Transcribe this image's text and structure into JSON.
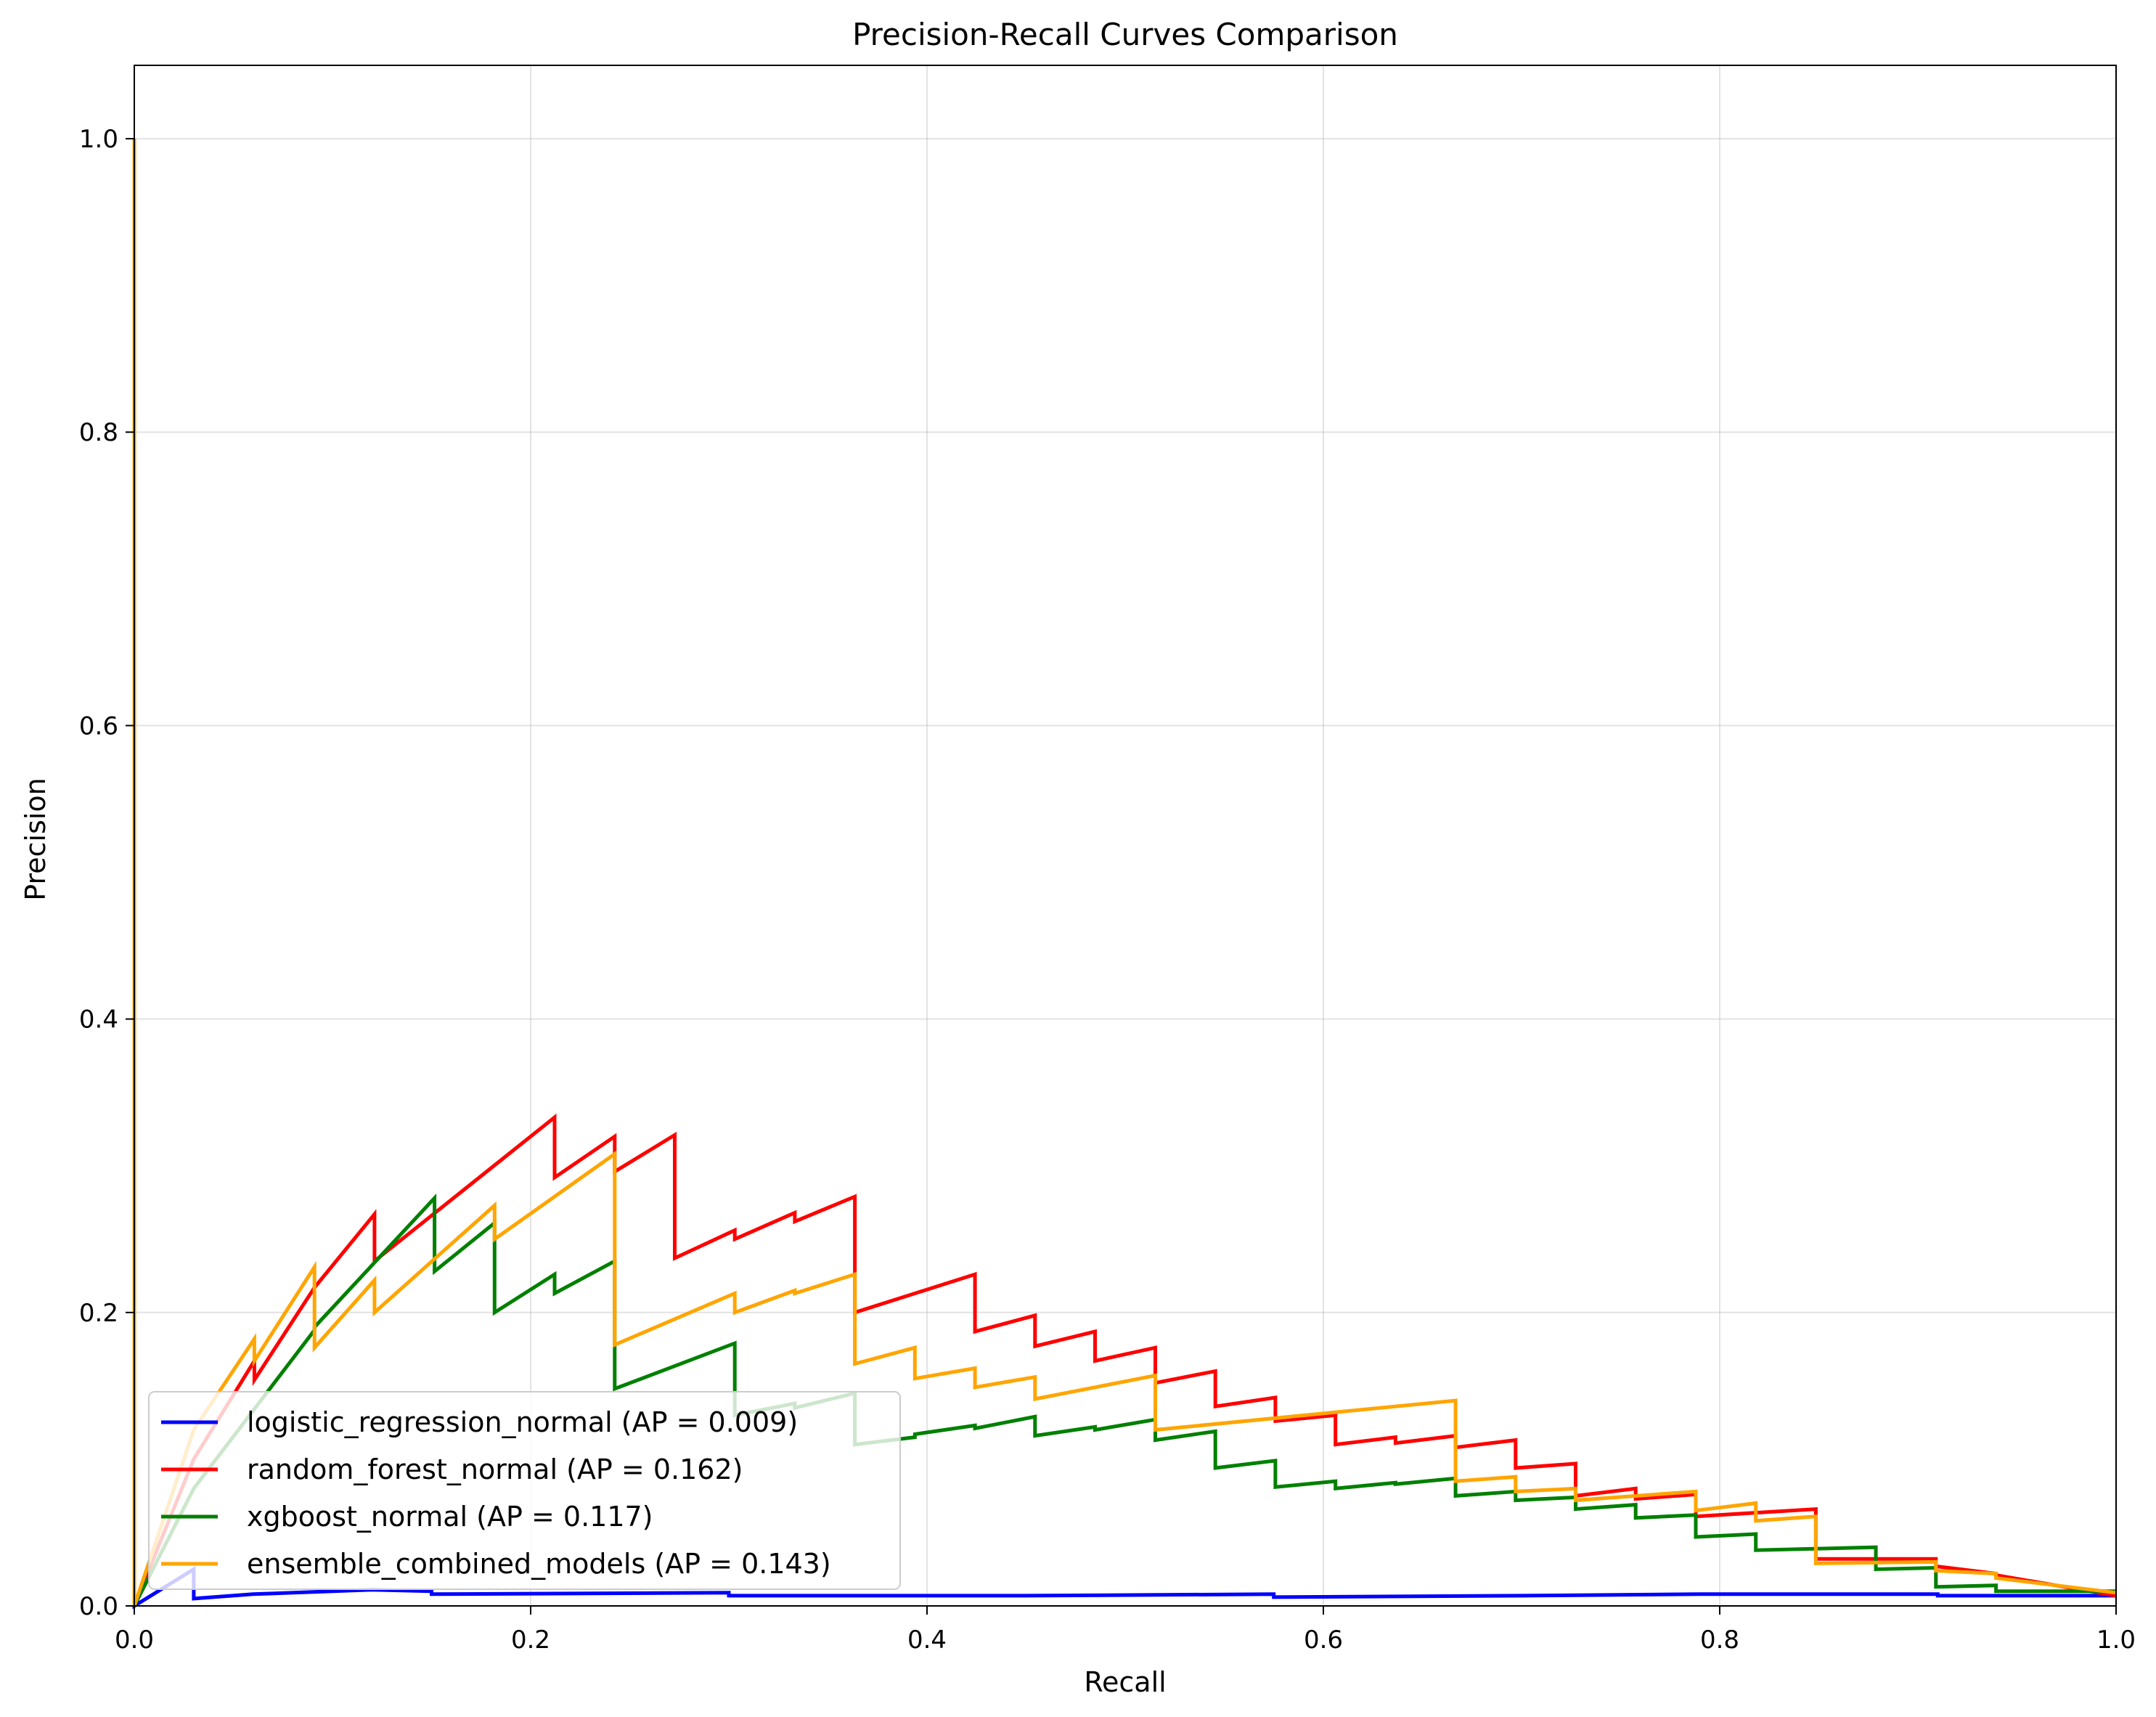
{
  "chart_data": {
    "type": "line",
    "title": "Precision-Recall Curves Comparison",
    "xlabel": "Recall",
    "ylabel": "Precision",
    "xlim": [
      0.0,
      1.0
    ],
    "ylim": [
      0.0,
      1.05
    ],
    "xticks": [
      0.0,
      0.2,
      0.4,
      0.6,
      0.8,
      1.0
    ],
    "yticks": [
      0.0,
      0.2,
      0.4,
      0.6,
      0.8,
      1.0
    ],
    "xtick_labels": [
      "0.0",
      "0.2",
      "0.4",
      "0.6",
      "0.8",
      "1.0"
    ],
    "ytick_labels": [
      "0.0",
      "0.2",
      "0.4",
      "0.6",
      "0.8",
      "1.0"
    ],
    "grid": true,
    "legend_position": "lower-left",
    "series": [
      {
        "name": "logistic_regression_normal (AP = 0.009)",
        "color": "#0000ff",
        "x": [
          0.0,
          0.0,
          0.03,
          0.03,
          0.06,
          0.12,
          0.15,
          0.15,
          0.3,
          0.3,
          0.4,
          0.45,
          0.575,
          0.575,
          0.7,
          0.79,
          0.91,
          0.91,
          1.0
        ],
        "y": [
          1.0,
          0.0,
          0.025,
          0.005,
          0.008,
          0.011,
          0.01,
          0.008,
          0.009,
          0.007,
          0.007,
          0.007,
          0.008,
          0.006,
          0.007,
          0.008,
          0.008,
          0.007,
          0.007
        ]
      },
      {
        "name": "random_forest_normal (AP = 0.162)",
        "color": "#ff0000",
        "x": [
          0.0,
          0.0,
          0.03,
          0.0606,
          0.0606,
          0.0909,
          0.1212,
          0.1212,
          0.2121,
          0.2121,
          0.2424,
          0.2424,
          0.2727,
          0.2727,
          0.303,
          0.303,
          0.3333,
          0.3333,
          0.3636,
          0.3636,
          0.4242,
          0.4242,
          0.4545,
          0.4545,
          0.4848,
          0.4848,
          0.5152,
          0.5152,
          0.5455,
          0.5455,
          0.5758,
          0.5758,
          0.6061,
          0.6061,
          0.6364,
          0.6364,
          0.6667,
          0.6667,
          0.697,
          0.697,
          0.7273,
          0.7273,
          0.7576,
          0.7576,
          0.7879,
          0.7879,
          0.8485,
          0.8485,
          0.9091,
          0.9091,
          0.9394,
          0.9394,
          1.0
        ],
        "y": [
          1.0,
          0.0,
          0.1,
          0.167,
          0.154,
          0.217,
          0.267,
          0.235,
          0.333,
          0.292,
          0.32,
          0.296,
          0.321,
          0.237,
          0.256,
          0.25,
          0.268,
          0.262,
          0.279,
          0.2,
          0.226,
          0.187,
          0.198,
          0.177,
          0.187,
          0.167,
          0.176,
          0.152,
          0.16,
          0.136,
          0.142,
          0.126,
          0.13,
          0.11,
          0.115,
          0.111,
          0.116,
          0.108,
          0.113,
          0.094,
          0.097,
          0.075,
          0.08,
          0.073,
          0.076,
          0.061,
          0.066,
          0.032,
          0.032,
          0.027,
          0.022,
          0.021,
          0.007
        ]
      },
      {
        "name": "xgboost_normal (AP = 0.117)",
        "color": "#008000",
        "x": [
          0.0,
          0.0,
          0.03,
          0.0909,
          0.0909,
          0.1515,
          0.1515,
          0.1818,
          0.1818,
          0.2121,
          0.2121,
          0.2424,
          0.2424,
          0.303,
          0.303,
          0.3333,
          0.3333,
          0.3636,
          0.3636,
          0.3939,
          0.3939,
          0.4242,
          0.4242,
          0.4545,
          0.4545,
          0.4848,
          0.4848,
          0.5152,
          0.5152,
          0.5455,
          0.5455,
          0.5758,
          0.5758,
          0.6061,
          0.6061,
          0.6364,
          0.6364,
          0.6667,
          0.6667,
          0.697,
          0.697,
          0.7273,
          0.7273,
          0.7576,
          0.7576,
          0.7879,
          0.7879,
          0.8182,
          0.8182,
          0.8788,
          0.8788,
          0.9091,
          0.9091,
          0.9394,
          0.9394,
          1.0
        ],
        "y": [
          1.0,
          0.0,
          0.08,
          0.188,
          0.19,
          0.278,
          0.228,
          0.261,
          0.2,
          0.226,
          0.213,
          0.235,
          0.148,
          0.179,
          0.13,
          0.138,
          0.135,
          0.145,
          0.11,
          0.115,
          0.117,
          0.123,
          0.121,
          0.129,
          0.116,
          0.122,
          0.12,
          0.127,
          0.113,
          0.119,
          0.094,
          0.099,
          0.081,
          0.085,
          0.08,
          0.084,
          0.083,
          0.087,
          0.075,
          0.078,
          0.072,
          0.074,
          0.066,
          0.069,
          0.06,
          0.062,
          0.047,
          0.049,
          0.038,
          0.04,
          0.025,
          0.026,
          0.013,
          0.014,
          0.01,
          0.01
        ]
      },
      {
        "name": "ensemble_combined_models (AP = 0.143)",
        "color": "#ffa500",
        "x": [
          0.0,
          0.0,
          0.03,
          0.0606,
          0.0606,
          0.0909,
          0.0909,
          0.1212,
          0.1212,
          0.1818,
          0.1818,
          0.2424,
          0.2424,
          0.303,
          0.303,
          0.3333,
          0.3333,
          0.3636,
          0.3636,
          0.3939,
          0.3939,
          0.4242,
          0.4242,
          0.4545,
          0.4545,
          0.5152,
          0.5152,
          0.6667,
          0.6667,
          0.697,
          0.697,
          0.7273,
          0.7273,
          0.7879,
          0.7879,
          0.8182,
          0.8182,
          0.8485,
          0.8485,
          0.9091,
          0.9091,
          0.9394,
          0.9394,
          1.0
        ],
        "y": [
          1.0,
          0.0,
          0.12,
          0.182,
          0.167,
          0.231,
          0.176,
          0.222,
          0.2,
          0.273,
          0.25,
          0.308,
          0.178,
          0.213,
          0.2,
          0.215,
          0.213,
          0.226,
          0.165,
          0.176,
          0.155,
          0.162,
          0.149,
          0.156,
          0.141,
          0.157,
          0.12,
          0.14,
          0.085,
          0.088,
          0.078,
          0.08,
          0.072,
          0.078,
          0.065,
          0.07,
          0.058,
          0.061,
          0.029,
          0.03,
          0.024,
          0.022,
          0.019,
          0.009
        ]
      }
    ]
  }
}
